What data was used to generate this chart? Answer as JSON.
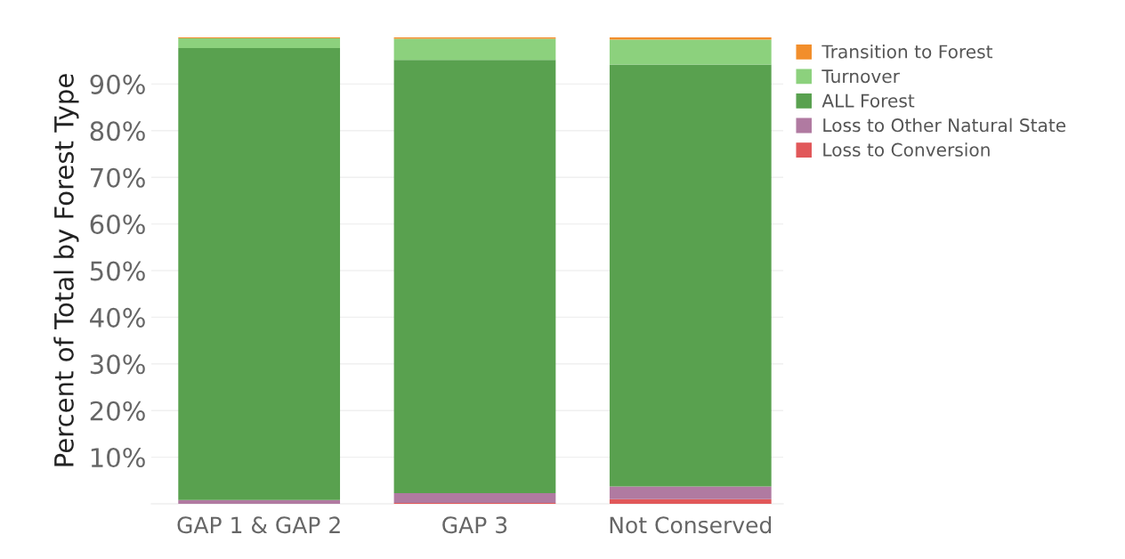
{
  "chart_data": {
    "type": "bar",
    "stacked": true,
    "ylabel": "Percent of Total by Forest Type",
    "categories": [
      "GAP 1 & GAP 2",
      "GAP 3",
      "Not Conserved"
    ],
    "series": [
      {
        "name": "Loss to Conversion",
        "color": "#e15759",
        "values": [
          0,
          0.2,
          1.0
        ]
      },
      {
        "name": "Loss to Other Natural State",
        "color": "#b07aa1",
        "values": [
          0.8,
          2.1,
          2.7
        ]
      },
      {
        "name": "ALL Forest",
        "color": "#59a14f",
        "values": [
          96.9,
          92.9,
          90.5
        ]
      },
      {
        "name": "Turnover",
        "color": "#8cd17d",
        "values": [
          2.1,
          4.5,
          5.3
        ]
      },
      {
        "name": "Transition to Forest",
        "color": "#f28e2b",
        "values": [
          0.2,
          0.3,
          0.5
        ]
      }
    ],
    "ylim": [
      0,
      100
    ],
    "yticks": [
      {
        "value": 10,
        "label": "10%"
      },
      {
        "value": 20,
        "label": "20%"
      },
      {
        "value": 30,
        "label": "30%"
      },
      {
        "value": 40,
        "label": "40%"
      },
      {
        "value": 50,
        "label": "50%"
      },
      {
        "value": 60,
        "label": "60%"
      },
      {
        "value": 70,
        "label": "70%"
      },
      {
        "value": 80,
        "label": "80%"
      },
      {
        "value": 90,
        "label": "90%"
      }
    ],
    "grid": "y",
    "legend": "top right"
  }
}
